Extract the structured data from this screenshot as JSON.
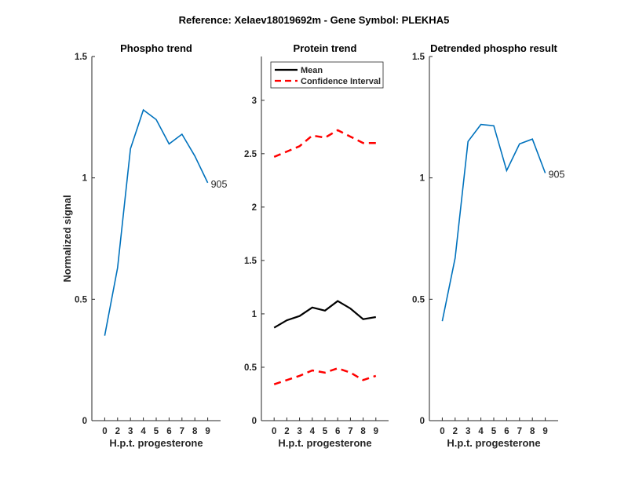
{
  "figure_title": "Reference:  Xelaev18019692m - Gene Symbol:  PLEKHA5",
  "chart_data": [
    {
      "type": "line",
      "title": "Phospho trend",
      "xlabel": "H.p.t. progesterone",
      "ylabel": "Normalized signal",
      "categories": [
        "0",
        "2",
        "3",
        "4",
        "5",
        "6",
        "7",
        "8",
        "9"
      ],
      "ylim": [
        0,
        1.5
      ],
      "yticks": [
        "0",
        "0.5",
        "1",
        "1.5"
      ],
      "series": [
        {
          "values": [
            0.35,
            0.63,
            1.12,
            1.28,
            1.24,
            1.14,
            1.18,
            1.09,
            0.98
          ],
          "color": "#0072BD",
          "style": "solid",
          "end_label": "905"
        }
      ]
    },
    {
      "type": "line",
      "title": "Protein trend",
      "xlabel": "H.p.t. progesterone",
      "ylabel": "",
      "categories": [
        "0",
        "2",
        "3",
        "4",
        "5",
        "6",
        "7",
        "8",
        "9"
      ],
      "ylim": [
        0,
        3.41
      ],
      "yticks": [
        "0",
        "0.5",
        "1",
        "1.5",
        "2",
        "2.5",
        "3"
      ],
      "legend": {
        "placement": "top",
        "entries": [
          "Mean",
          "Confidence Interval"
        ]
      },
      "series": [
        {
          "name": "Mean",
          "values": [
            0.87,
            0.94,
            0.98,
            1.06,
            1.03,
            1.12,
            1.05,
            0.95,
            0.97
          ],
          "color": "#000000",
          "style": "solid"
        },
        {
          "name": "Confidence Interval",
          "values": [
            2.47,
            2.52,
            2.57,
            2.67,
            2.65,
            2.72,
            2.66,
            2.6,
            2.6
          ],
          "color": "#FF0000",
          "style": "dashed"
        },
        {
          "name": "Confidence Interval",
          "values": [
            0.34,
            0.38,
            0.42,
            0.47,
            0.45,
            0.49,
            0.45,
            0.38,
            0.42
          ],
          "color": "#FF0000",
          "style": "dashed"
        }
      ]
    },
    {
      "type": "line",
      "title": "Detrended phospho result",
      "xlabel": "H.p.t. progesterone",
      "ylabel": "",
      "categories": [
        "0",
        "2",
        "3",
        "4",
        "5",
        "6",
        "7",
        "8",
        "9"
      ],
      "ylim": [
        0,
        1.5
      ],
      "yticks": [
        "0",
        "0.5",
        "1",
        "1.5"
      ],
      "series": [
        {
          "values": [
            0.41,
            0.67,
            1.15,
            1.22,
            1.215,
            1.03,
            1.14,
            1.16,
            1.02
          ],
          "color": "#0072BD",
          "style": "solid",
          "end_label": "905"
        }
      ]
    }
  ]
}
